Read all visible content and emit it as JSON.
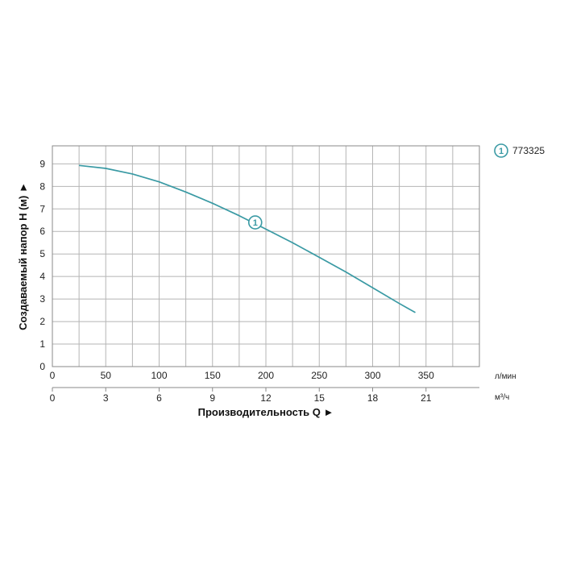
{
  "chart_data": {
    "type": "line",
    "ylabel": "Создаваемый напор H (м) ►",
    "xlabel": "Производительность Q ►",
    "y_ticks": [
      "0",
      "1",
      "2",
      "3",
      "4",
      "5",
      "6",
      "7",
      "8",
      "9"
    ],
    "ylim": [
      0,
      9.8
    ],
    "x_axis_lpm": {
      "unit": "л/мин",
      "ticks": [
        "0",
        "50",
        "100",
        "150",
        "200",
        "250",
        "300",
        "350"
      ],
      "xlim": [
        0,
        400
      ]
    },
    "x_axis_m3h": {
      "unit": "м³/ч",
      "ticks": [
        "0",
        "3",
        "6",
        "9",
        "12",
        "15",
        "18",
        "21"
      ]
    },
    "grid": true,
    "series": [
      {
        "name": "773325",
        "marker_label": "1",
        "color": "#3a9aa4",
        "x": [
          25,
          50,
          75,
          100,
          125,
          150,
          175,
          200,
          225,
          250,
          275,
          300,
          325,
          340
        ],
        "y": [
          8.93,
          8.8,
          8.55,
          8.2,
          7.75,
          7.25,
          6.7,
          6.1,
          5.5,
          4.85,
          4.2,
          3.5,
          2.8,
          2.4
        ]
      }
    ],
    "legend": {
      "position": "top-right"
    }
  }
}
